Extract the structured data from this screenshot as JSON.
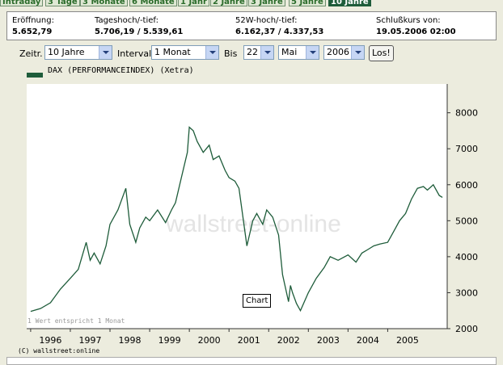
{
  "tabs": [
    "Intraday",
    "3 Tage",
    "3 Monate",
    "6 Monate",
    "1 Jahr",
    "2 Jahre",
    "3 Jahre",
    "5 Jahre",
    "10 Jahre"
  ],
  "active_tab": "10 Jahre",
  "quote": {
    "open_label": "Eröffnung:",
    "open_value": "5.652,79",
    "day_label": "Tageshoch/-tief:",
    "day_value": "5.706,19 / 5.539,61",
    "week52_label": "52W-hoch/-tief:",
    "week52_value": "6.162,37 / 4.337,53",
    "close_label": "Schlußkurs von:",
    "close_value": "19.05.2006 02:00"
  },
  "controls": {
    "zeitraum_label": "Zeitr.",
    "zeitraum_value": "10 Jahre",
    "intervall_label": "Intervall",
    "intervall_value": "1 Monat",
    "bis_label": "Bis",
    "day_value": "22",
    "month_value": "Mai",
    "year_value": "2006",
    "go_label": "Los!"
  },
  "legend": "DAX (PERFORMANCEINDEX) (Xetra)",
  "note": "1 Wert entspricht 1 Monat",
  "watermark": "wallstreet-online",
  "tooltip": "Chart",
  "copyright": "(C) wallstreet:online",
  "colors": {
    "line": "#1e5c3a",
    "active_tab": "#1e5c3a",
    "background": "#ececde"
  },
  "chart_data": {
    "type": "line",
    "series": [
      {
        "name": "DAX (PERFORMANCEINDEX) (Xetra)",
        "x": [
          1996.0,
          1996.25,
          1996.5,
          1996.75,
          1997.0,
          1997.2,
          1997.4,
          1997.5,
          1997.6,
          1997.75,
          1997.9,
          1998.0,
          1998.2,
          1998.4,
          1998.5,
          1998.65,
          1998.75,
          1998.9,
          1999.0,
          1999.2,
          1999.4,
          1999.55,
          1999.65,
          1999.8,
          1999.95,
          2000.0,
          2000.1,
          2000.2,
          2000.35,
          2000.5,
          2000.6,
          2000.75,
          2000.9,
          2001.0,
          2001.15,
          2001.25,
          2001.45,
          2001.6,
          2001.7,
          2001.85,
          2001.95,
          2002.1,
          2002.25,
          2002.35,
          2002.5,
          2002.55,
          2002.6,
          2002.7,
          2002.8,
          2003.0,
          2003.2,
          2003.4,
          2003.55,
          2003.75,
          2004.0,
          2004.2,
          2004.35,
          2004.5,
          2004.65,
          2004.8,
          2005.0,
          2005.15,
          2005.3,
          2005.45,
          2005.6,
          2005.75,
          2005.9,
          2006.0,
          2006.15,
          2006.3,
          2006.38
        ],
        "values": [
          2480,
          2560,
          2720,
          3100,
          3400,
          3650,
          4400,
          3900,
          4100,
          3800,
          4300,
          4900,
          5300,
          5900,
          4900,
          4400,
          4800,
          5100,
          5000,
          5300,
          4950,
          5300,
          5500,
          6200,
          6900,
          7600,
          7500,
          7200,
          6900,
          7100,
          6700,
          6800,
          6400,
          6200,
          6100,
          5900,
          4300,
          5000,
          5200,
          4900,
          5300,
          5100,
          4600,
          3500,
          2750,
          3200,
          3000,
          2700,
          2500,
          3000,
          3400,
          3700,
          4000,
          3900,
          4050,
          3850,
          4100,
          4200,
          4300,
          4350,
          4400,
          4700,
          5000,
          5200,
          5600,
          5900,
          5950,
          5850,
          6000,
          5700,
          5650
        ]
      }
    ],
    "xticks": [
      "1996",
      "1997",
      "1998",
      "1999",
      "2000",
      "2001",
      "2002",
      "2003",
      "2004",
      "2005"
    ],
    "yticks": [
      2000,
      3000,
      4000,
      5000,
      6000,
      7000,
      8000
    ],
    "ylim": [
      2000,
      8800
    ],
    "xlim": [
      1995.9,
      2006.5
    ],
    "grid": false
  }
}
